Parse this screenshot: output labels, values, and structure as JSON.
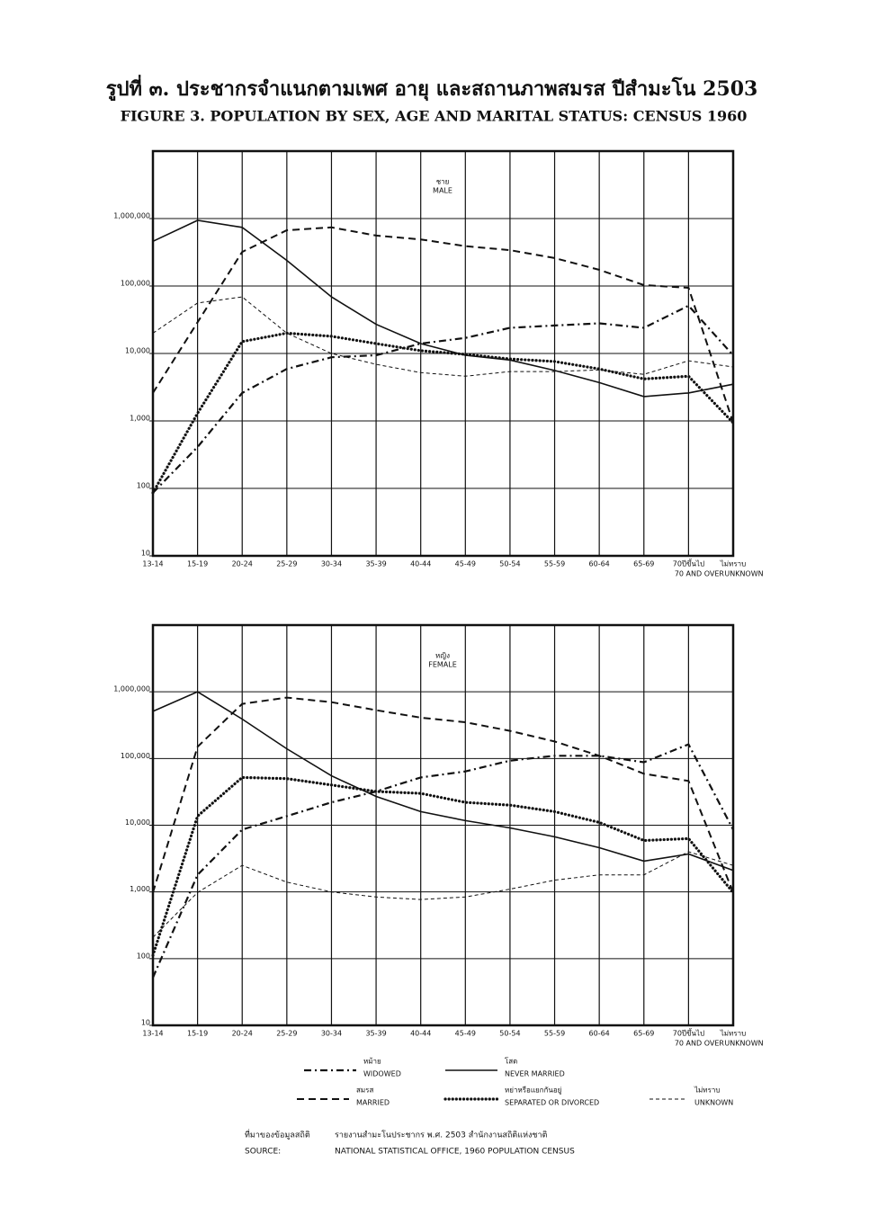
{
  "title_th": "รูปที่ ๓. ประชากรจำแนกตามเพศ อายุ และสถานภาพสมรส ปีสำมะโน 2503",
  "title": "FIGURE 3. POPULATION BY SEX, AGE AND MARITAL STATUS: CENSUS 1960",
  "chart_data": [
    {
      "type": "line",
      "label_th": "ชาย",
      "label": "MALE",
      "log_scale": true,
      "grid": true,
      "categories": [
        "13-14",
        "15-19",
        "20-24",
        "25-29",
        "30-34",
        "35-39",
        "40-44",
        "45-49",
        "50-54",
        "55-59",
        "60-64",
        "65-69",
        "70ปีขึ้นไป",
        "ไม่ทราบ"
      ],
      "category_sublabels": [
        null,
        null,
        null,
        null,
        null,
        null,
        null,
        null,
        null,
        null,
        null,
        null,
        "70 AND OVER",
        "UNKNOWN"
      ],
      "ylim": [
        10,
        10000000
      ],
      "yticks": [
        10,
        100,
        {
          "value": 1000,
          "label": "1,000"
        },
        {
          "value": 10000,
          "label": "10,000"
        },
        {
          "value": 100000,
          "label": "100,000"
        },
        {
          "value": 1000000,
          "label": "1,000,000"
        }
      ],
      "series": [
        {
          "style": "dash-dot",
          "color": "#111",
          "values": [
            86,
            410,
            2600,
            5900,
            8800,
            9400,
            14000,
            17000,
            24000,
            26000,
            28000,
            24000,
            51000,
            9400
          ]
        },
        {
          "style": "solid",
          "color": "#111",
          "values": [
            460000,
            940000,
            740000,
            240000,
            69000,
            27000,
            14000,
            9400,
            8000,
            5600,
            3700,
            2300,
            2600,
            3500
          ]
        },
        {
          "style": "dashed",
          "color": "#111",
          "values": [
            2600,
            29000,
            320000,
            670000,
            740000,
            560000,
            490000,
            390000,
            340000,
            260000,
            174000,
            103000,
            94000,
            940
          ]
        },
        {
          "style": "dotted",
          "color": "#111",
          "values": [
            86,
            1300,
            15000,
            20000,
            18000,
            14000,
            11000,
            9700,
            8300,
            7600,
            5900,
            4200,
            4600,
            940
          ]
        },
        {
          "style": "fine-dashed",
          "color": "#111",
          "values": [
            20000,
            56000,
            69000,
            20000,
            10000,
            6900,
            5200,
            4600,
            5400,
            5400,
            5700,
            4900,
            7800,
            6300
          ]
        }
      ]
    },
    {
      "type": "line",
      "label_th": "หญิง",
      "label": "FEMALE",
      "log_scale": true,
      "grid": true,
      "categories": [
        "13-14",
        "15-19",
        "20-24",
        "25-29",
        "30-34",
        "35-39",
        "40-44",
        "45-49",
        "50-54",
        "55-59",
        "60-64",
        "65-69",
        "70ปีขึ้นไป",
        "ไม่ทราบ"
      ],
      "category_sublabels": [
        null,
        null,
        null,
        null,
        null,
        null,
        null,
        null,
        null,
        null,
        null,
        null,
        "70 AND OVER",
        "UNKNOWN"
      ],
      "ylim": [
        10,
        10000000
      ],
      "yticks": [
        10,
        100,
        {
          "value": 1000,
          "label": "1,000"
        },
        {
          "value": 10000,
          "label": "10,000"
        },
        {
          "value": 100000,
          "label": "100,000"
        },
        {
          "value": 1000000,
          "label": "1,000,000"
        }
      ],
      "series": [
        {
          "name_th": "หม้าย",
          "name": "WIDOWED",
          "style": "dash-dot",
          "color": "#111",
          "values": [
            52,
            1800,
            8600,
            13700,
            22000,
            32000,
            52000,
            64000,
            93000,
            110000,
            110000,
            88000,
            163000,
            8600
          ]
        },
        {
          "name_th": "โสด",
          "name": "NEVER MARRIED",
          "style": "solid",
          "color": "#111",
          "values": [
            510000,
            1000000,
            390000,
            140000,
            55000,
            27000,
            16000,
            11700,
            9100,
            6700,
            4600,
            2900,
            3700,
            2100
          ]
        },
        {
          "name_th": "สมรส",
          "name": "MARRIED",
          "style": "dashed",
          "color": "#111",
          "values": [
            980,
            150000,
            660000,
            820000,
            700000,
            530000,
            410000,
            350000,
            260000,
            180000,
            110000,
            59000,
            46000,
            980
          ]
        },
        {
          "name_th": "หย่าหรือแยกกันอยู่",
          "name": "SEPARATED OR DIVORCED",
          "style": "dotted",
          "color": "#111",
          "values": [
            112,
            13700,
            52000,
            50000,
            40000,
            32000,
            30000,
            22000,
            20000,
            16000,
            11000,
            5900,
            6300,
            980
          ]
        },
        {
          "name_th": "ไม่ทราบ",
          "name": "UNKNOWN",
          "style": "fine-dashed",
          "color": "#111",
          "values": [
            208,
            980,
            2500,
            1400,
            1000,
            840,
            770,
            840,
            1100,
            1500,
            1800,
            1800,
            4000,
            2500
          ]
        }
      ]
    }
  ],
  "source_label_th": "ที่มาของข้อมูลสถิติ",
  "source_th": "รายงานสำมะโนประชากร พ.ศ. 2503 สำนักงานสถิติแห่งชาติ",
  "source_label": "SOURCE:",
  "source": "NATIONAL STATISTICAL OFFICE, 1960 POPULATION CENSUS"
}
